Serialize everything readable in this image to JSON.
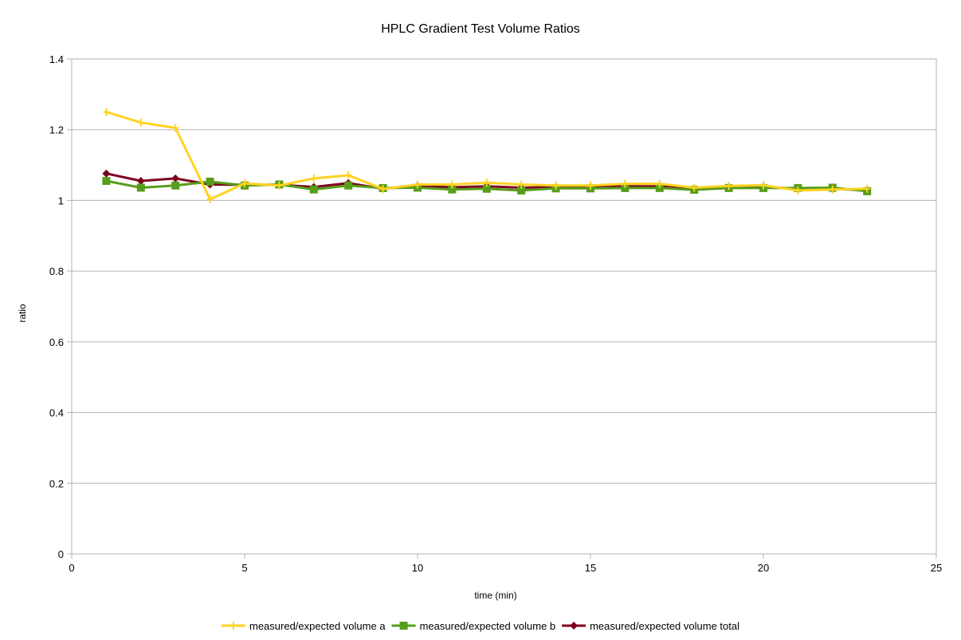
{
  "chart_data": {
    "type": "line",
    "title": "HPLC Gradient Test Volume Ratios",
    "xlabel": "time (min)",
    "ylabel": "ratio",
    "xlim": [
      0,
      25
    ],
    "ylim": [
      0,
      1.4
    ],
    "xticks": [
      "0",
      "5",
      "10",
      "15",
      "20",
      "25"
    ],
    "yticks": [
      "0",
      "0.2",
      "0.4",
      "0.6",
      "0.8",
      "1",
      "1.2",
      "1.4"
    ],
    "grid": "horizontal",
    "legend_position": "bottom",
    "series": [
      {
        "name": "measured/expected volume a",
        "color": "#FFD320",
        "marker": "plus",
        "x": [
          1,
          2,
          3,
          4,
          5,
          6,
          7,
          8,
          9,
          10,
          11,
          12,
          13,
          14,
          15,
          16,
          17,
          18,
          19,
          20,
          21,
          22,
          23
        ],
        "y": [
          1.25,
          1.22,
          1.205,
          1.003,
          1.048,
          1.042,
          1.062,
          1.071,
          1.032,
          1.045,
          1.045,
          1.05,
          1.045,
          1.042,
          1.042,
          1.047,
          1.047,
          1.036,
          1.041,
          1.043,
          1.028,
          1.031,
          1.033
        ]
      },
      {
        "name": "measured/expected volume b",
        "color": "#579D1C",
        "marker": "square",
        "x": [
          1,
          2,
          3,
          4,
          5,
          6,
          7,
          8,
          9,
          10,
          11,
          12,
          13,
          14,
          15,
          16,
          17,
          18,
          19,
          20,
          21,
          22,
          23
        ],
        "y": [
          1.055,
          1.036,
          1.042,
          1.053,
          1.042,
          1.045,
          1.031,
          1.042,
          1.035,
          1.036,
          1.031,
          1.033,
          1.028,
          1.034,
          1.034,
          1.035,
          1.035,
          1.03,
          1.035,
          1.035,
          1.035,
          1.036,
          1.026
        ]
      },
      {
        "name": "measured/expected volume total",
        "color": "#7E0021",
        "marker": "diamond",
        "x": [
          1,
          2,
          3,
          4,
          5,
          6,
          7,
          8,
          9,
          10,
          11,
          12,
          13,
          14,
          15,
          16,
          17,
          18,
          19,
          20,
          21,
          22,
          23
        ],
        "y": [
          1.076,
          1.055,
          1.062,
          1.045,
          1.044,
          1.044,
          1.038,
          1.049,
          1.033,
          1.041,
          1.037,
          1.04,
          1.036,
          1.038,
          1.038,
          1.04,
          1.04,
          1.033,
          1.038,
          1.039,
          1.032,
          1.032,
          1.03
        ]
      }
    ]
  }
}
